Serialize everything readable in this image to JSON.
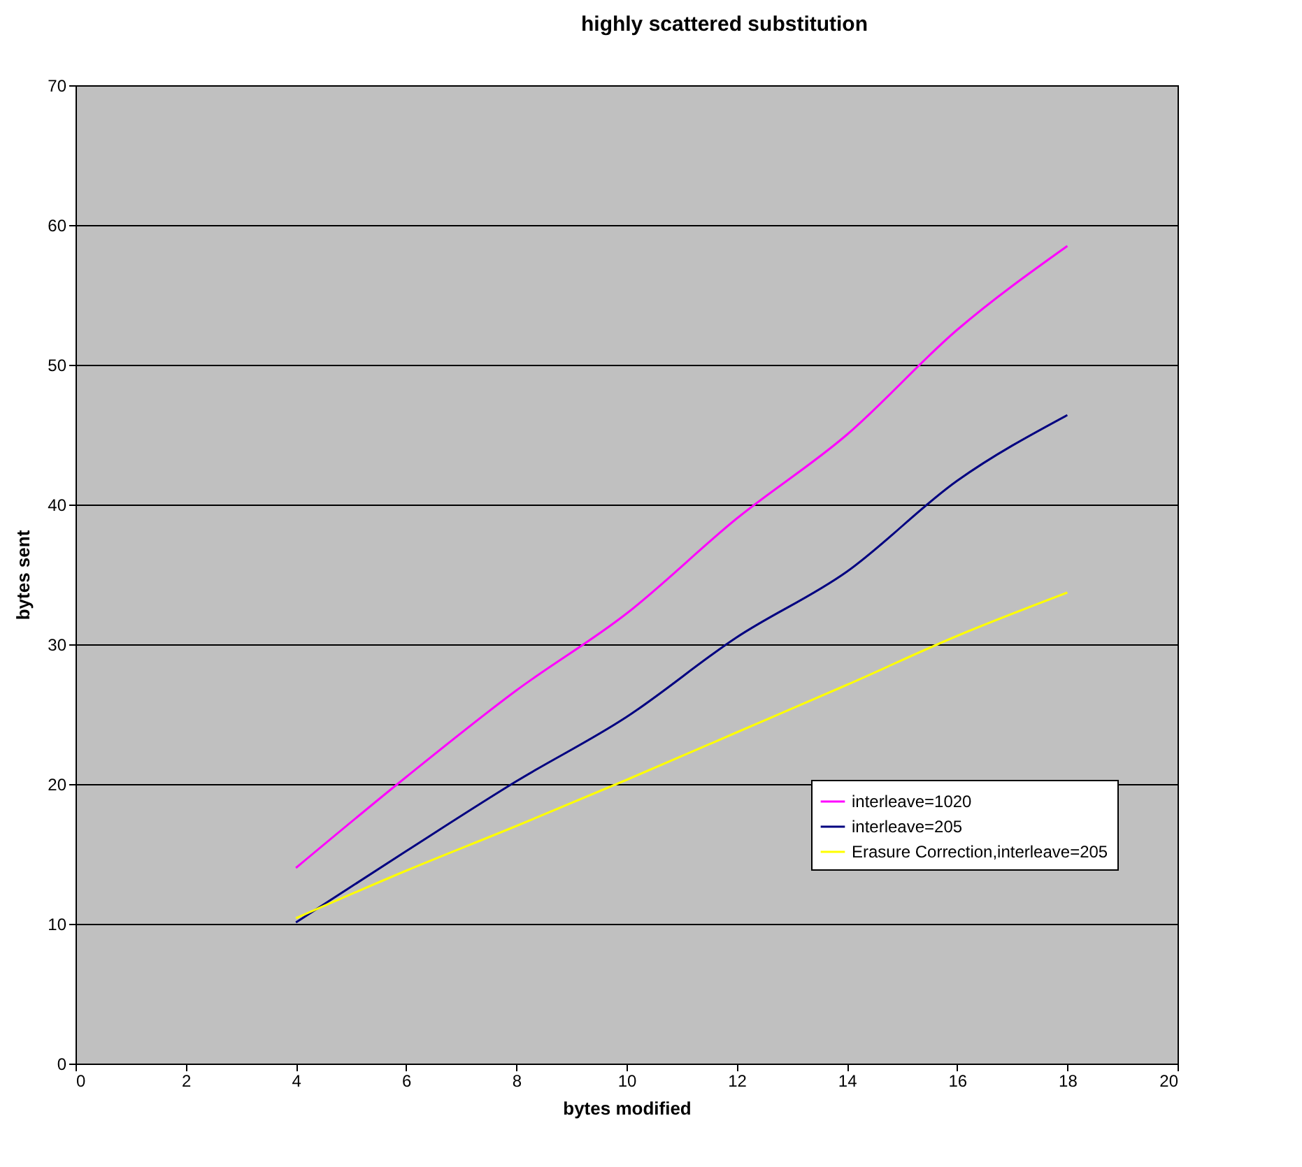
{
  "chart_data": {
    "type": "line",
    "title": "highly scattered substitution",
    "xlabel": "bytes modified",
    "ylabel": "bytes sent",
    "x": [
      4,
      6,
      8,
      10,
      12,
      14,
      16,
      18
    ],
    "series": [
      {
        "name": "interleave=1020",
        "color": "#ff00ff",
        "values": [
          14.0,
          20.5,
          26.7,
          32.2,
          39.0,
          45.0,
          52.5,
          58.5
        ]
      },
      {
        "name": "interleave=205",
        "color": "#000080",
        "values": [
          10.1,
          15.2,
          20.2,
          24.8,
          30.5,
          35.2,
          41.7,
          46.4
        ]
      },
      {
        "name": "Erasure Correction,interleave=205",
        "color": "#ffff00",
        "values": [
          10.4,
          13.8,
          17.0,
          20.3,
          23.7,
          27.1,
          30.6,
          33.7
        ]
      }
    ],
    "xlim": [
      0,
      20
    ],
    "xticks": [
      0,
      2,
      4,
      6,
      8,
      10,
      12,
      14,
      16,
      18,
      20
    ],
    "ylim": [
      0,
      70
    ],
    "yticks": [
      0,
      10,
      20,
      30,
      40,
      50,
      60,
      70
    ],
    "grid": "y",
    "legend": "right",
    "marker": "none",
    "line_style": "solid"
  }
}
